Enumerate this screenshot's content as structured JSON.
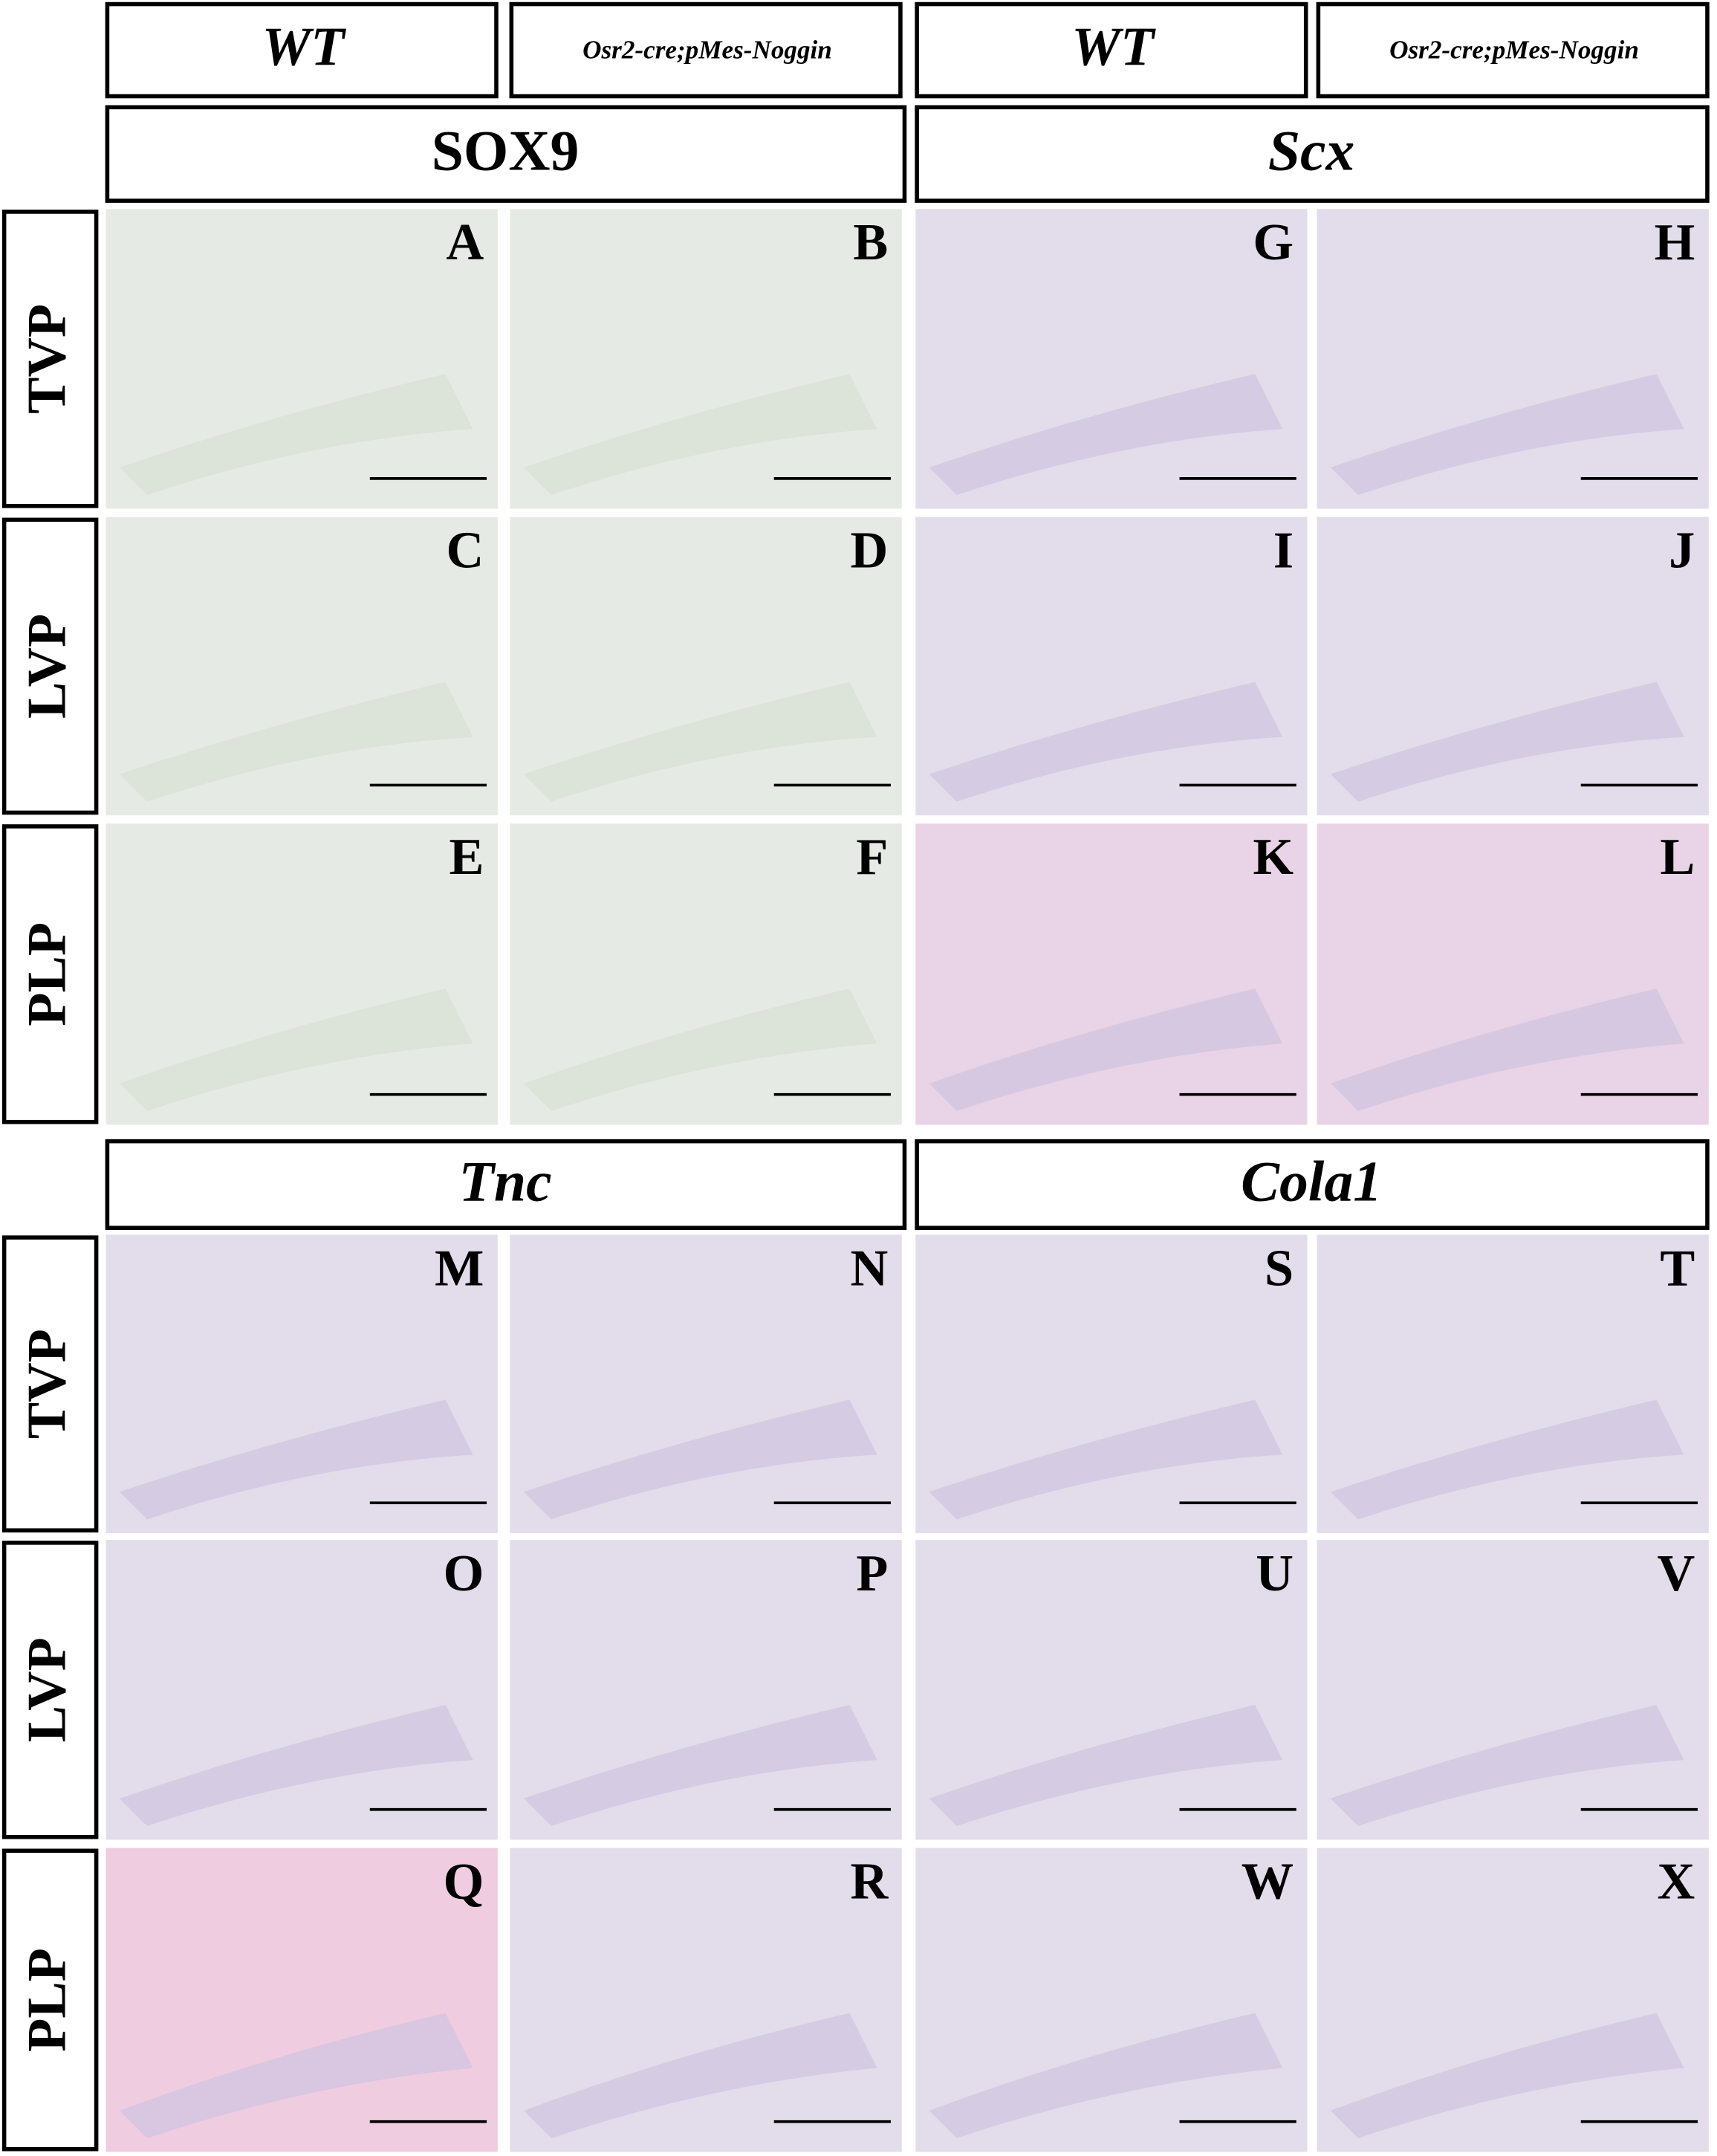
{
  "genotypes": [
    "WT",
    "Osr2-cre;pMes-Noggin",
    "WT",
    "Osr2-cre;pMes-Noggin"
  ],
  "sections": [
    "SOX9",
    "Scx",
    "Tnc",
    "Cola1"
  ],
  "row_labels": [
    "TVP",
    "LVP",
    "PLP",
    "TVP",
    "LVP",
    "PLP"
  ],
  "panels": [
    [
      "A",
      "B",
      "G",
      "H"
    ],
    [
      "C",
      "D",
      "I",
      "J"
    ],
    [
      "E",
      "F",
      "K",
      "L"
    ],
    [
      "M",
      "N",
      "S",
      "T"
    ],
    [
      "O",
      "P",
      "U",
      "V"
    ],
    [
      "Q",
      "R",
      "W",
      "X"
    ]
  ]
}
